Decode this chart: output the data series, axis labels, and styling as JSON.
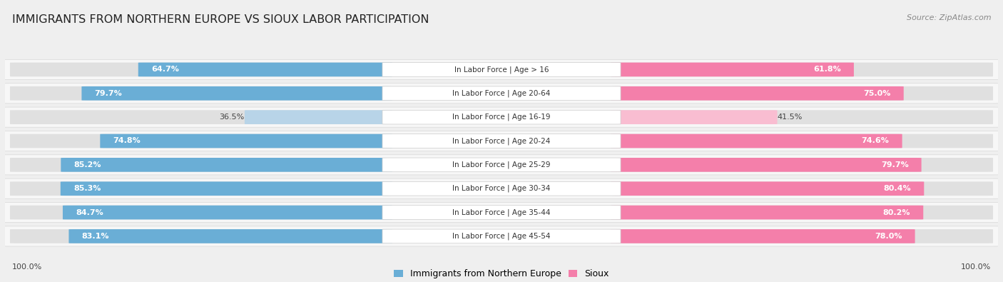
{
  "title": "IMMIGRANTS FROM NORTHERN EUROPE VS SIOUX LABOR PARTICIPATION",
  "source": "Source: ZipAtlas.com",
  "categories": [
    "In Labor Force | Age > 16",
    "In Labor Force | Age 20-64",
    "In Labor Force | Age 16-19",
    "In Labor Force | Age 20-24",
    "In Labor Force | Age 25-29",
    "In Labor Force | Age 30-34",
    "In Labor Force | Age 35-44",
    "In Labor Force | Age 45-54"
  ],
  "left_values": [
    64.7,
    79.7,
    36.5,
    74.8,
    85.2,
    85.3,
    84.7,
    83.1
  ],
  "right_values": [
    61.8,
    75.0,
    41.5,
    74.6,
    79.7,
    80.4,
    80.2,
    78.0
  ],
  "left_label": "Immigrants from Northern Europe",
  "right_label": "Sioux",
  "left_color_strong": "#6aaed6",
  "left_color_light": "#b8d4e8",
  "right_color_strong": "#f47faa",
  "right_color_light": "#f9bdd1",
  "bg_color": "#efefef",
  "row_bg_color": "#f7f7f7",
  "row_border_color": "#d8d8d8",
  "max_val": 100.0,
  "title_fontsize": 11.5,
  "label_fontsize": 7.5,
  "value_fontsize": 8.0,
  "legend_fontsize": 9,
  "source_fontsize": 8
}
